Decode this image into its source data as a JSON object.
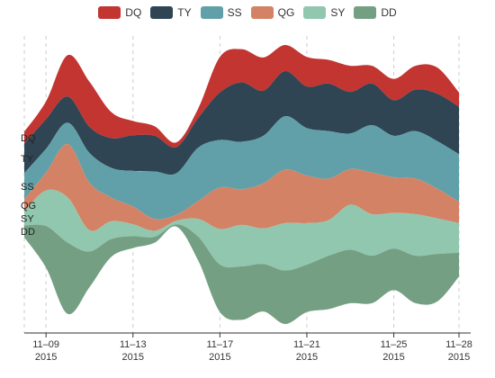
{
  "chart_data": {
    "type": "area",
    "subtype": "themeriver",
    "x": [
      "2015-11-08",
      "2015-11-09",
      "2015-11-10",
      "2015-11-11",
      "2015-11-12",
      "2015-11-13",
      "2015-11-14",
      "2015-11-15",
      "2015-11-16",
      "2015-11-17",
      "2015-11-18",
      "2015-11-19",
      "2015-11-20",
      "2015-11-21",
      "2015-11-22",
      "2015-11-23",
      "2015-11-24",
      "2015-11-25",
      "2015-11-26",
      "2015-11-27",
      "2015-11-28"
    ],
    "x_ticks": [
      {
        "date": "2015-11-09",
        "top": "11–09",
        "bottom": "2015"
      },
      {
        "date": "2015-11-13",
        "top": "11–13",
        "bottom": "2015"
      },
      {
        "date": "2015-11-17",
        "top": "11–17",
        "bottom": "2015"
      },
      {
        "date": "2015-11-21",
        "top": "11–21",
        "bottom": "2015"
      },
      {
        "date": "2015-11-25",
        "top": "11–25",
        "bottom": "2015"
      },
      {
        "date": "2015-11-28",
        "top": "11–28",
        "bottom": "2015"
      }
    ],
    "legend": {
      "position": "top-center"
    },
    "grid": {
      "vertical_dashed": true
    },
    "series": [
      {
        "name": "DQ",
        "color": "#c23531",
        "values": [
          10,
          15,
          35,
          38,
          22,
          12,
          8,
          4,
          8,
          30,
          28,
          28,
          22,
          25,
          20,
          22,
          15,
          18,
          20,
          22,
          12
        ]
      },
      {
        "name": "TY",
        "color": "#2f4554",
        "values": [
          25,
          25,
          22,
          22,
          25,
          30,
          30,
          22,
          25,
          40,
          50,
          38,
          38,
          35,
          40,
          35,
          35,
          30,
          35,
          40,
          40
        ]
      },
      {
        "name": "SS",
        "color": "#61a0a8",
        "values": [
          22,
          20,
          18,
          25,
          25,
          30,
          40,
          35,
          45,
          40,
          40,
          40,
          45,
          40,
          40,
          30,
          40,
          35,
          40,
          40,
          40
        ]
      },
      {
        "name": "QG",
        "color": "#d48265",
        "values": [
          10,
          15,
          45,
          40,
          20,
          15,
          10,
          5,
          15,
          35,
          30,
          38,
          45,
          40,
          35,
          30,
          35,
          30,
          30,
          25,
          18
        ]
      },
      {
        "name": "SY",
        "color": "#91c7ae",
        "values": [
          12,
          30,
          38,
          18,
          15,
          10,
          5,
          3,
          15,
          30,
          35,
          30,
          40,
          35,
          30,
          38,
          35,
          30,
          35,
          30,
          25
        ]
      },
      {
        "name": "DD",
        "color": "#749f83",
        "values": [
          10,
          35,
          60,
          30,
          15,
          10,
          5,
          2,
          20,
          40,
          45,
          40,
          45,
          40,
          45,
          45,
          40,
          35,
          40,
          40,
          20
        ]
      }
    ]
  }
}
